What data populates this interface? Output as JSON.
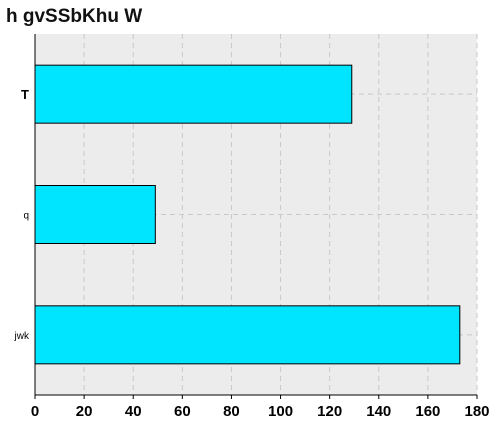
{
  "chart_data": {
    "type": "bar",
    "orientation": "horizontal",
    "title": "h gvSSbKhu W",
    "xlabel": "",
    "ylabel": "",
    "categories": [
      "T",
      "q",
      "jwk"
    ],
    "values": [
      129,
      49,
      173
    ],
    "xlim": [
      0,
      180
    ],
    "xticks": [
      0,
      20,
      40,
      60,
      80,
      100,
      120,
      140,
      160,
      180
    ],
    "grid": true,
    "colors": {
      "bar_fill": "#00e5ff",
      "bar_stroke": "#000000",
      "plot_background": "#ececec",
      "grid": "#c8c8c8"
    }
  }
}
